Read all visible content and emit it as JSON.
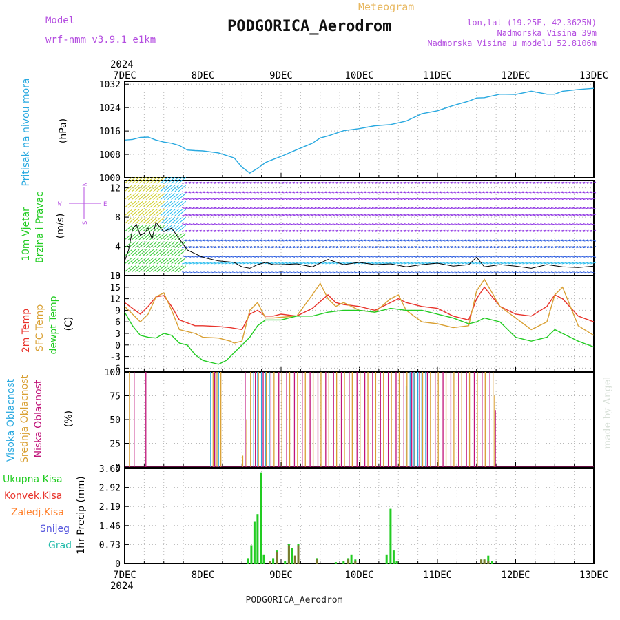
{
  "header": {
    "model_label": "Model",
    "model_name": "wrf-nmm_v3.9.1 e1km",
    "title": "PODGORICA_Aerodrom",
    "meteogram_label": "Meteogram",
    "lonlat": "lon,lat (19.25E, 42.3625N)",
    "elevation": "Nadmorska Visina 39m",
    "model_elevation": "Nadmorska Visina u modelu 52.8106m",
    "footer_title": "PODGORICA_Aerodrom",
    "credit": "made by Angel"
  },
  "colors": {
    "pressure": "#29a9e0",
    "temp2m": "#e8332b",
    "sfc_temp": "#d9a033",
    "dewpoint": "#22cc22",
    "high_cloud": "#29a9e0",
    "mid_cloud": "#d9a033",
    "low_cloud": "#c0147a",
    "total_precip": "#22cc22",
    "conv_precip": "#e8332b",
    "grid_precip": "#ff7f2a",
    "snow": "#5555dd",
    "hail": "#22bbaa",
    "wind_violet": "#8a2be2",
    "wind_blue": "#2255dd",
    "wind_cyan": "#22bbee",
    "wind_green": "#33cc33",
    "wind_yellow": "#cccc22",
    "wind_orange": "#ff8822",
    "wind_red": "#dd2222"
  },
  "chart_data": [
    {
      "type": "line",
      "panel": "pressure",
      "ylabel_lines": [
        "Pritisak na nivou mora",
        "(hPa)"
      ],
      "ylim": [
        1000,
        1033
      ],
      "yticks": [
        "1000",
        "1008",
        "1016",
        "1024",
        "1032"
      ],
      "series": [
        {
          "x": [
            0,
            0.1,
            0.2,
            0.3,
            0.4,
            0.5,
            0.6,
            0.7,
            0.8,
            0.9,
            1.0,
            1.2,
            1.4,
            1.5,
            1.6,
            1.7,
            1.8,
            1.9,
            2.0,
            2.2,
            2.4,
            2.5,
            2.6,
            2.8,
            3.0,
            3.2,
            3.4,
            3.6,
            3.8,
            4.0,
            4.2,
            4.4,
            4.5,
            4.6,
            4.8,
            5.0,
            5.2,
            5.4,
            5.5,
            5.6,
            5.8,
            6.0
          ],
          "y": [
            1012.9,
            1013.1,
            1013.8,
            1013.9,
            1012.9,
            1012.2,
            1011.8,
            1011.0,
            1009.5,
            1009.3,
            1009.2,
            1008.5,
            1006.8,
            1003.6,
            1001.6,
            1003.2,
            1005.2,
            1006.3,
            1007.3,
            1009.6,
            1011.8,
            1013.6,
            1014.3,
            1016.1,
            1016.8,
            1017.8,
            1018.2,
            1019.4,
            1021.9,
            1022.9,
            1024.7,
            1026.2,
            1027.3,
            1027.4,
            1028.6,
            1028.5,
            1029.6,
            1028.6,
            1028.6,
            1029.6,
            1030.2,
            1030.6
          ]
        }
      ]
    },
    {
      "type": "line",
      "panel": "wind",
      "ylabel_lines": [
        "10m Vjetar",
        "Brzina i Pravac",
        "(m/s)"
      ],
      "compass": [
        "N",
        "W",
        "E",
        "S"
      ],
      "ylim": [
        0,
        13
      ],
      "yticks": [
        "0",
        "4",
        "8",
        "12"
      ],
      "series": [
        {
          "name": "wind speed",
          "x": [
            0,
            0.05,
            0.1,
            0.15,
            0.2,
            0.25,
            0.3,
            0.35,
            0.4,
            0.45,
            0.5,
            0.6,
            0.7,
            0.8,
            0.9,
            1.0,
            1.2,
            1.4,
            1.5,
            1.6,
            1.7,
            1.8,
            1.9,
            2.0,
            2.2,
            2.4,
            2.6,
            2.8,
            3.0,
            3.2,
            3.4,
            3.6,
            3.8,
            4.0,
            4.2,
            4.4,
            4.5,
            4.6,
            4.8,
            5.0,
            5.2,
            5.4,
            5.6,
            5.8,
            6.0
          ],
          "y": [
            2.0,
            3.5,
            6.3,
            7.0,
            5.5,
            5.8,
            6.5,
            5.0,
            7.3,
            6.6,
            6.0,
            6.5,
            5.0,
            3.5,
            3.0,
            2.5,
            2.0,
            1.8,
            1.2,
            1.0,
            1.5,
            1.8,
            1.5,
            1.5,
            1.6,
            1.2,
            2.2,
            1.5,
            1.8,
            1.5,
            1.6,
            1.2,
            1.5,
            1.7,
            1.3,
            1.5,
            2.5,
            1.2,
            1.5,
            1.3,
            1.0,
            1.5,
            1.2,
            1.1,
            1.3
          ]
        }
      ]
    },
    {
      "type": "line",
      "panel": "temperature",
      "ylabel_lines": [
        "2m Temp",
        "SFC Temp",
        "dewpt Temp",
        "(C)"
      ],
      "ylim": [
        -7,
        18
      ],
      "yticks": [
        "-6",
        "-3",
        "0",
        "3",
        "6",
        "9",
        "12",
        "15",
        "18"
      ],
      "series": [
        {
          "name": "2m Temp",
          "x": [
            0,
            0.2,
            0.3,
            0.4,
            0.5,
            0.6,
            0.7,
            0.9,
            1.0,
            1.2,
            1.35,
            1.5,
            1.6,
            1.7,
            1.8,
            1.9,
            2.0,
            2.2,
            2.4,
            2.6,
            2.7,
            2.8,
            3.0,
            3.2,
            3.4,
            3.5,
            3.6,
            3.8,
            4.0,
            4.2,
            4.4,
            4.5,
            4.6,
            4.8,
            5.0,
            5.2,
            5.4,
            5.5,
            5.6,
            5.8,
            6.0
          ],
          "y": [
            11,
            8,
            10,
            12.5,
            12.8,
            10,
            6.5,
            5,
            5,
            4.8,
            4.5,
            4,
            8,
            9,
            7.5,
            7.5,
            8,
            7.5,
            9.5,
            13,
            11,
            10.5,
            10,
            9,
            11,
            12,
            11,
            10,
            9.5,
            7.5,
            6.5,
            12,
            15,
            10,
            8,
            7.5,
            10,
            13,
            12,
            7.5,
            6
          ]
        },
        {
          "name": "SFC Temp",
          "x": [
            0,
            0.2,
            0.3,
            0.4,
            0.5,
            0.6,
            0.7,
            0.9,
            1.0,
            1.2,
            1.35,
            1.4,
            1.5,
            1.6,
            1.7,
            1.8,
            1.9,
            2.0,
            2.2,
            2.4,
            2.5,
            2.6,
            2.7,
            2.8,
            3.0,
            3.2,
            3.4,
            3.5,
            3.6,
            3.8,
            4.0,
            4.2,
            4.4,
            4.5,
            4.6,
            4.8,
            5.0,
            5.2,
            5.4,
            5.5,
            5.6,
            5.8,
            6.0
          ],
          "y": [
            10,
            6,
            8,
            12.5,
            13.5,
            9,
            4,
            3,
            2,
            1.8,
            1,
            0.5,
            1,
            9,
            11,
            7,
            7,
            7.2,
            7.5,
            13,
            16,
            12,
            10,
            11,
            9,
            8.5,
            12,
            13,
            9,
            6,
            5.5,
            4.5,
            5,
            14,
            17,
            10,
            7,
            4,
            6,
            13,
            15,
            5,
            2.5
          ]
        },
        {
          "name": "dewpt Temp",
          "x": [
            0,
            0.1,
            0.2,
            0.3,
            0.4,
            0.5,
            0.6,
            0.7,
            0.8,
            0.9,
            1.0,
            1.1,
            1.2,
            1.3,
            1.4,
            1.5,
            1.6,
            1.7,
            1.8,
            2.0,
            2.2,
            2.4,
            2.5,
            2.6,
            2.8,
            3.0,
            3.2,
            3.4,
            3.6,
            3.8,
            4.0,
            4.2,
            4.4,
            4.5,
            4.6,
            4.8,
            5.0,
            5.2,
            5.4,
            5.5,
            5.6,
            5.8,
            6.0
          ],
          "y": [
            8.5,
            5,
            2.5,
            2,
            1.8,
            3,
            2.5,
            0.5,
            0,
            -2.5,
            -4,
            -4.5,
            -5,
            -4,
            -2,
            0,
            2,
            5,
            6.5,
            6.5,
            7.5,
            7.5,
            8,
            8.5,
            9,
            9,
            8.5,
            9.5,
            9,
            9,
            8,
            7,
            5.5,
            6,
            7,
            6,
            2,
            1,
            2,
            4,
            3,
            1,
            -0.5
          ]
        }
      ]
    },
    {
      "type": "bar",
      "panel": "clouds",
      "ylabel_lines": [
        "Visoka Oblacnost",
        "Srednja Oblacnost",
        "Niska Oblacnost",
        "(%)"
      ],
      "ylim": [
        0,
        100
      ],
      "yticks": [
        "0",
        "25",
        "50",
        "75",
        "100"
      ],
      "series": [
        {
          "name": "Visoka Oblacnost",
          "values": [
            [
              1.1,
              100
            ],
            [
              1.15,
              100
            ],
            [
              1.2,
              100
            ],
            [
              1.65,
              100
            ],
            [
              1.7,
              100
            ],
            [
              1.75,
              100
            ],
            [
              1.8,
              100
            ],
            [
              1.85,
              100
            ],
            [
              3.6,
              85
            ],
            [
              3.65,
              100
            ],
            [
              3.7,
              100
            ],
            [
              3.75,
              100
            ],
            [
              3.8,
              100
            ],
            [
              3.85,
              100
            ]
          ]
        },
        {
          "name": "Srednja Oblacnost",
          "values": [
            [
              0.05,
              100
            ],
            [
              1.12,
              100
            ],
            [
              1.17,
              100
            ],
            [
              1.22,
              100
            ],
            [
              1.5,
              12
            ],
            [
              1.55,
              50
            ],
            [
              1.6,
              100
            ],
            [
              1.7,
              100
            ],
            [
              1.8,
              100
            ],
            [
              1.9,
              100
            ],
            [
              2.0,
              100
            ],
            [
              2.1,
              100
            ],
            [
              2.2,
              100
            ],
            [
              2.3,
              100
            ],
            [
              2.4,
              100
            ],
            [
              2.5,
              100
            ],
            [
              2.6,
              100
            ],
            [
              2.7,
              100
            ],
            [
              2.8,
              100
            ],
            [
              2.9,
              100
            ],
            [
              3.0,
              100
            ],
            [
              3.1,
              100
            ],
            [
              3.2,
              100
            ],
            [
              3.3,
              100
            ],
            [
              3.4,
              100
            ],
            [
              3.5,
              100
            ],
            [
              3.6,
              100
            ],
            [
              3.7,
              100
            ],
            [
              3.8,
              100
            ],
            [
              3.9,
              100
            ],
            [
              4.0,
              100
            ],
            [
              4.1,
              100
            ],
            [
              4.2,
              100
            ],
            [
              4.3,
              100
            ],
            [
              4.4,
              100
            ],
            [
              4.5,
              100
            ],
            [
              4.6,
              100
            ],
            [
              4.7,
              100
            ],
            [
              4.72,
              75
            ]
          ]
        },
        {
          "name": "Niska Oblacnost",
          "values": [
            [
              0.1,
              100
            ],
            [
              0.25,
              100
            ],
            [
              1.13,
              100
            ],
            [
              1.52,
              100
            ],
            [
              1.65,
              100
            ],
            [
              1.75,
              100
            ],
            [
              1.85,
              100
            ],
            [
              1.95,
              100
            ],
            [
              2.05,
              100
            ],
            [
              2.15,
              100
            ],
            [
              2.25,
              100
            ],
            [
              2.35,
              100
            ],
            [
              2.45,
              100
            ],
            [
              2.55,
              100
            ],
            [
              2.65,
              100
            ],
            [
              2.75,
              100
            ],
            [
              2.85,
              100
            ],
            [
              2.95,
              100
            ],
            [
              3.05,
              100
            ],
            [
              3.15,
              100
            ],
            [
              3.25,
              100
            ],
            [
              3.35,
              100
            ],
            [
              3.45,
              100
            ],
            [
              3.55,
              100
            ],
            [
              3.65,
              100
            ],
            [
              3.75,
              100
            ],
            [
              3.85,
              100
            ],
            [
              3.95,
              100
            ],
            [
              4.05,
              100
            ],
            [
              4.15,
              100
            ],
            [
              4.25,
              100
            ],
            [
              4.35,
              100
            ],
            [
              4.45,
              100
            ],
            [
              4.55,
              100
            ],
            [
              4.65,
              100
            ],
            [
              4.72,
              60
            ]
          ]
        }
      ]
    },
    {
      "type": "bar",
      "panel": "precipitation",
      "ylabel_lines": [
        "1hr Precip (mm)"
      ],
      "legend": [
        "Ukupna Kisa",
        "Konvek.Kisa",
        "Zaledj.Kisa",
        "Snijeg",
        "Grad"
      ],
      "ylim": [
        0,
        3.65
      ],
      "yticks": [
        "0",
        "0.73",
        "1.46",
        "2.19",
        "2.92",
        "3.65"
      ],
      "series": [
        {
          "name": "Ukupna Kisa",
          "values": [
            [
              1.58,
              0.2
            ],
            [
              1.62,
              0.7
            ],
            [
              1.66,
              1.6
            ],
            [
              1.7,
              1.9
            ],
            [
              1.74,
              3.5
            ],
            [
              1.78,
              0.35
            ],
            [
              1.86,
              0.1
            ],
            [
              1.9,
              0.2
            ],
            [
              1.95,
              0.5
            ],
            [
              2.05,
              0.1
            ],
            [
              2.1,
              0.75
            ],
            [
              2.14,
              0.6
            ],
            [
              2.18,
              0.3
            ],
            [
              2.22,
              0.75
            ],
            [
              2.46,
              0.2
            ],
            [
              2.7,
              0.05
            ],
            [
              2.8,
              0.1
            ],
            [
              2.86,
              0.2
            ],
            [
              2.9,
              0.35
            ],
            [
              2.95,
              0.15
            ],
            [
              3.35,
              0.35
            ],
            [
              3.4,
              2.1
            ],
            [
              3.44,
              0.5
            ],
            [
              3.48,
              0.1
            ],
            [
              4.56,
              0.15
            ],
            [
              4.6,
              0.15
            ],
            [
              4.65,
              0.3
            ],
            [
              4.7,
              0.1
            ]
          ]
        },
        {
          "name": "Konvek.Kisa",
          "values": [
            [
              1.86,
              0.1
            ],
            [
              1.95,
              0.45
            ],
            [
              2.1,
              0.7
            ],
            [
              2.18,
              0.3
            ],
            [
              2.22,
              0.7
            ],
            [
              2.46,
              0.15
            ],
            [
              2.86,
              0.15
            ],
            [
              2.95,
              0.1
            ],
            [
              4.56,
              0.15
            ],
            [
              4.6,
              0.15
            ],
            [
              4.65,
              0.1
            ]
          ]
        }
      ]
    }
  ],
  "time_axis": {
    "year": "2024",
    "labels": [
      "7DEC",
      "8DEC",
      "9DEC",
      "10DEC",
      "11DEC",
      "12DEC",
      "13DEC"
    ]
  }
}
